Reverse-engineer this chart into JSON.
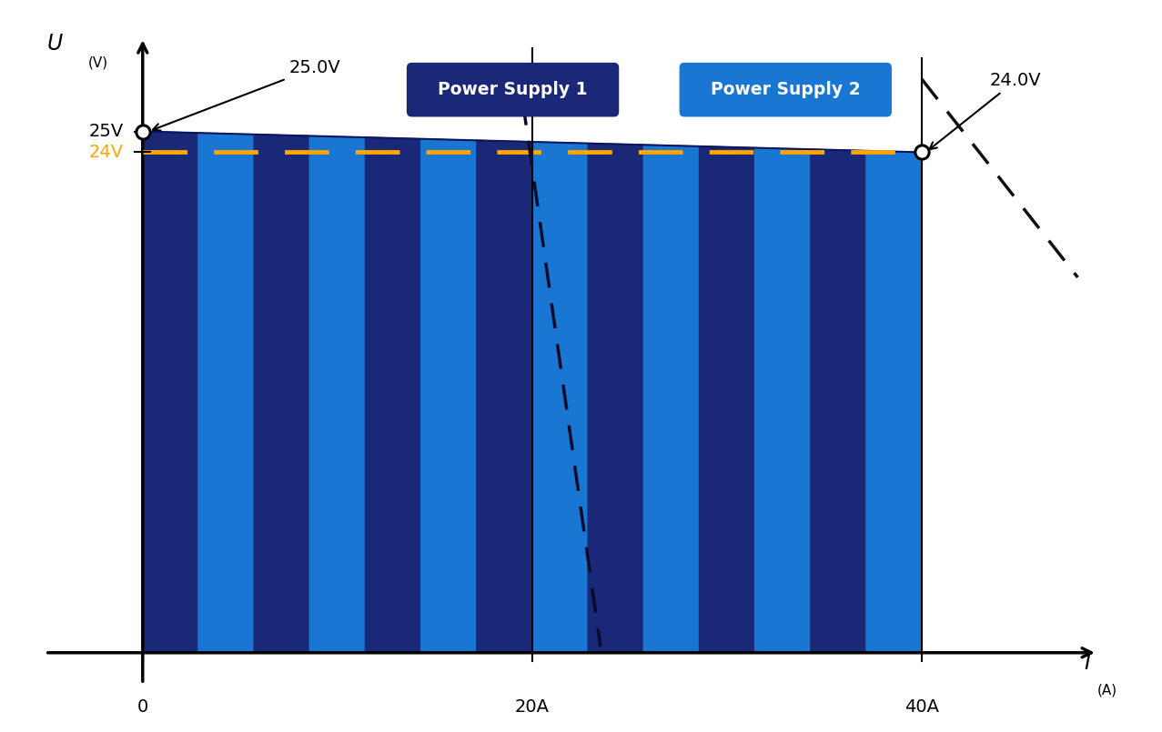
{
  "bg_color": "#ffffff",
  "dark_blue": "#1a2878",
  "light_blue": "#1976d2",
  "orange_color": "#FFA500",
  "x_min": 0,
  "x_max": 40,
  "y_min": 0,
  "y_max": 25,
  "v_no_load": 25,
  "v_full_load": 24,
  "i_max": 40,
  "v_ref": 24,
  "stripe_count": 14,
  "legend1_text": "Power Supply 1",
  "legend2_text": "Power Supply 2",
  "legend1_color": "#1a2878",
  "legend2_color": "#1976d2",
  "annot_25v_text": "25.0V",
  "annot_24v_text": "24.0V",
  "ps1_curve": [
    [
      19.5,
      26.5
    ],
    [
      23.5,
      0.3
    ]
  ],
  "ps2_curve": [
    [
      40.0,
      27.5
    ],
    [
      48.0,
      18.0
    ]
  ],
  "break_mark_y": 10,
  "xlim": [
    -7,
    52
  ],
  "ylim": [
    -3.5,
    31
  ]
}
